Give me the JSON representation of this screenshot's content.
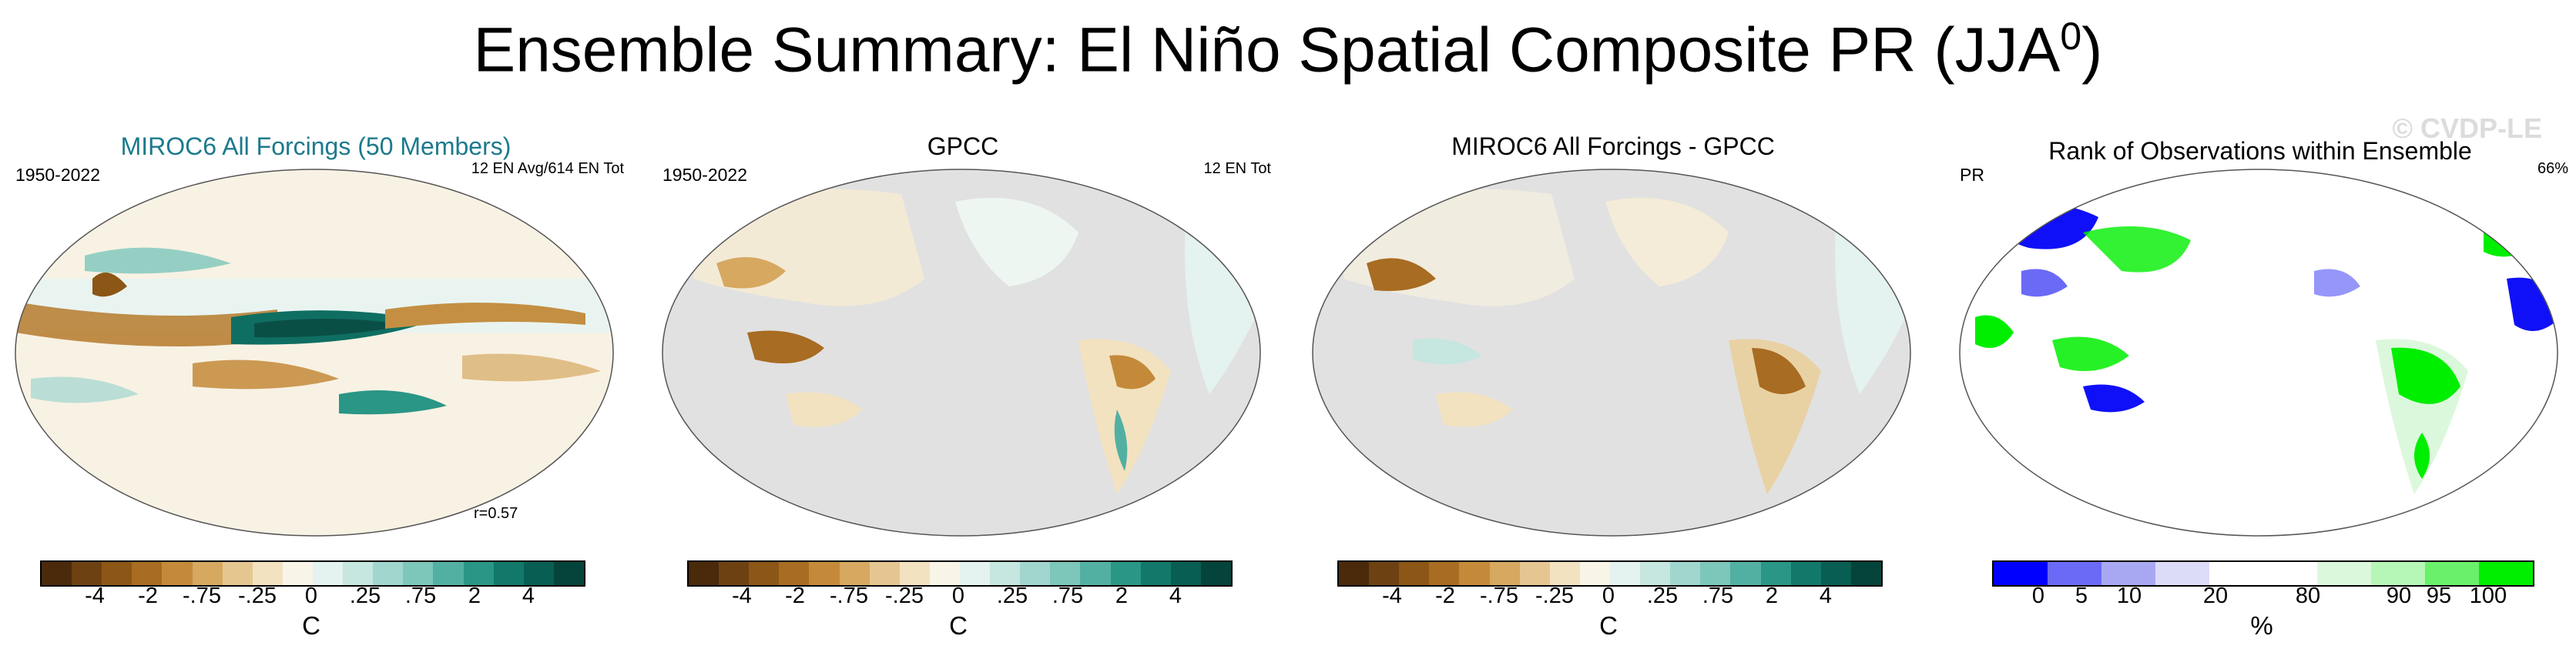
{
  "title_main": "Ensemble Summary: El Niño Spatial Composite PR (JJA",
  "title_sup": "0",
  "title_close": ")",
  "watermark": "© CVDP-LE",
  "panels": [
    {
      "title": "MIROC6 All Forcings (50 Members)",
      "left_label": "1950-2022",
      "right_label": "12 EN Avg/614 EN Tot",
      "corr": "r=0.57"
    },
    {
      "title": "GPCC",
      "left_label": "1950-2022",
      "right_label": "12 EN Tot"
    },
    {
      "title": "MIROC6 All Forcings - GPCC"
    },
    {
      "title": "Rank of Observations within Ensemble",
      "left_label": "PR",
      "right_label": "66%"
    }
  ],
  "colorbar_diverging": {
    "colors": [
      "#4a2a0a",
      "#6e4112",
      "#8c5616",
      "#a86c22",
      "#c48a3a",
      "#d6a860",
      "#e6c690",
      "#f2e2c0",
      "#f8f4e8",
      "#e4f2f0",
      "#c6e6e0",
      "#a0d6ce",
      "#7cc6ba",
      "#52b0a2",
      "#2a9686",
      "#12786a",
      "#085e52",
      "#04443a"
    ],
    "tick_labels": [
      "-4",
      "-2",
      "-.75",
      "-.25",
      "0",
      ".25",
      ".75",
      "2",
      "4"
    ],
    "unit": "C"
  },
  "colorbar_rank": {
    "colors": [
      "#0000ff",
      "#6a6af6",
      "#a8a8f2",
      "#dcdcf8",
      "#ffffff",
      "#ffffff",
      "#dcf8dc",
      "#b6f6b6",
      "#6af06a",
      "#00ee00"
    ],
    "tick_labels": [
      "0",
      "5",
      "10",
      "20",
      "80",
      "90",
      "95",
      "100"
    ],
    "unit": "%"
  }
}
